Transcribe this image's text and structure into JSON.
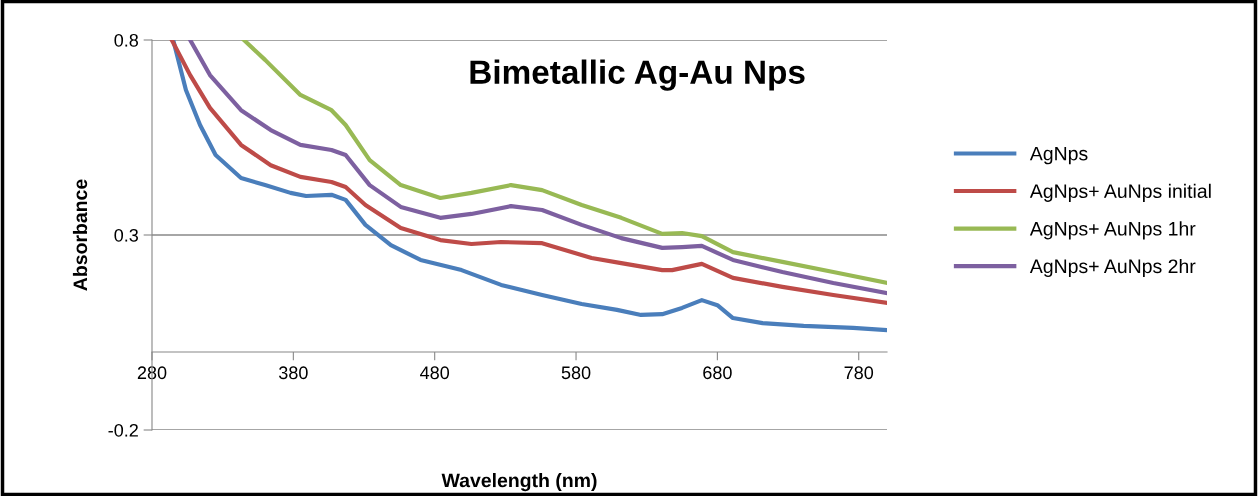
{
  "chart_data": {
    "type": "line",
    "title": "Bimetallic Ag-Au Nps",
    "xlabel": "Wavelength (nm)",
    "ylabel": "Absorbance",
    "xlim": [
      280,
      800
    ],
    "ylim": [
      -0.2,
      0.8
    ],
    "xticks": [
      280,
      380,
      480,
      580,
      680,
      780
    ],
    "yticks": [
      -0.2,
      0.3,
      0.8
    ],
    "grid": "y",
    "legend": "right",
    "series": [
      {
        "name": "AgNps",
        "color": "#4a7ebb",
        "x": [
          295,
          304,
          314,
          325,
          343,
          360,
          378,
          389,
          407,
          417,
          431,
          449,
          470,
          499,
          527,
          556,
          584,
          609,
          626,
          641,
          655,
          669,
          680,
          691,
          712,
          741,
          776,
          800
        ],
        "values": [
          0.8,
          0.672,
          0.582,
          0.505,
          0.446,
          0.428,
          0.408,
          0.4,
          0.403,
          0.39,
          0.326,
          0.274,
          0.236,
          0.21,
          0.172,
          0.146,
          0.123,
          0.108,
          0.095,
          0.097,
          0.113,
          0.133,
          0.12,
          0.087,
          0.074,
          0.067,
          0.062,
          0.056
        ]
      },
      {
        "name": "AgNps+ AuNps initial",
        "color": "#be4b48",
        "x": [
          294,
          307,
          321,
          343,
          364,
          385,
          407,
          417,
          431,
          456,
          484,
          506,
          527,
          556,
          591,
          612,
          641,
          648,
          669,
          691,
          726,
          762,
          800
        ],
        "values": [
          0.8,
          0.71,
          0.626,
          0.531,
          0.479,
          0.449,
          0.436,
          0.423,
          0.377,
          0.318,
          0.287,
          0.277,
          0.282,
          0.279,
          0.241,
          0.228,
          0.21,
          0.21,
          0.226,
          0.19,
          0.167,
          0.146,
          0.126
        ]
      },
      {
        "name": "AgNps+ AuNps 1hr",
        "color": "#98b954",
        "x": [
          345,
          360,
          385,
          407,
          417,
          434,
          456,
          484,
          506,
          534,
          556,
          584,
          612,
          641,
          655,
          669,
          691,
          726,
          762,
          800
        ],
        "values": [
          0.8,
          0.749,
          0.659,
          0.62,
          0.582,
          0.492,
          0.428,
          0.395,
          0.408,
          0.428,
          0.415,
          0.377,
          0.344,
          0.303,
          0.305,
          0.297,
          0.256,
          0.231,
          0.205,
          0.177
        ]
      },
      {
        "name": "AgNps+ AuNps 2hr",
        "color": "#7d60a0",
        "x": [
          307,
          321,
          343,
          364,
          385,
          407,
          417,
          434,
          456,
          484,
          506,
          534,
          556,
          584,
          612,
          641,
          655,
          669,
          691,
          726,
          762,
          800
        ],
        "values": [
          0.8,
          0.71,
          0.62,
          0.569,
          0.531,
          0.518,
          0.505,
          0.428,
          0.372,
          0.344,
          0.354,
          0.374,
          0.364,
          0.326,
          0.292,
          0.267,
          0.269,
          0.272,
          0.236,
          0.205,
          0.177,
          0.151
        ]
      }
    ]
  }
}
